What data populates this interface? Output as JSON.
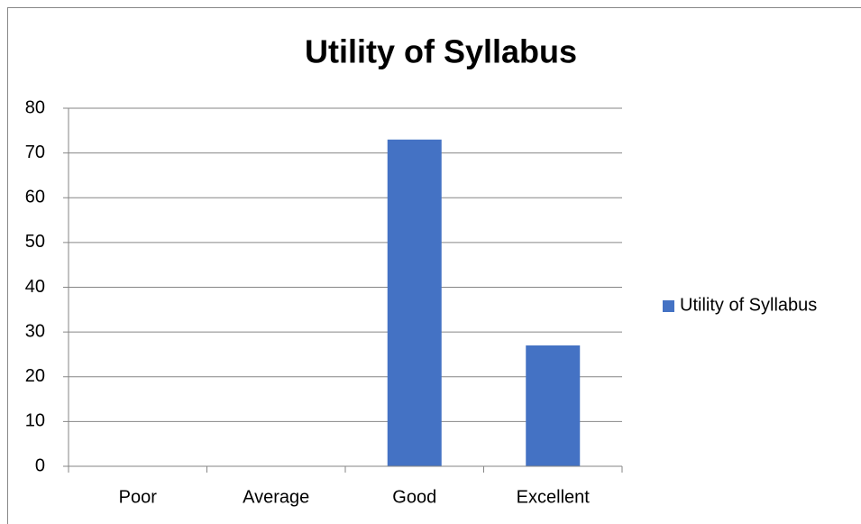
{
  "chart_data": {
    "type": "bar",
    "title": "Utility of Syllabus",
    "categories": [
      "Poor",
      "Average",
      "Good",
      "Excellent"
    ],
    "series": [
      {
        "name": "Utility of Syllabus",
        "color": "#4472c4",
        "values": [
          0,
          0,
          73,
          27
        ]
      }
    ],
    "ylim": [
      0,
      80
    ],
    "yticks": [
      0,
      10,
      20,
      30,
      40,
      50,
      60,
      70,
      80
    ],
    "grid": true,
    "legend": "right"
  }
}
